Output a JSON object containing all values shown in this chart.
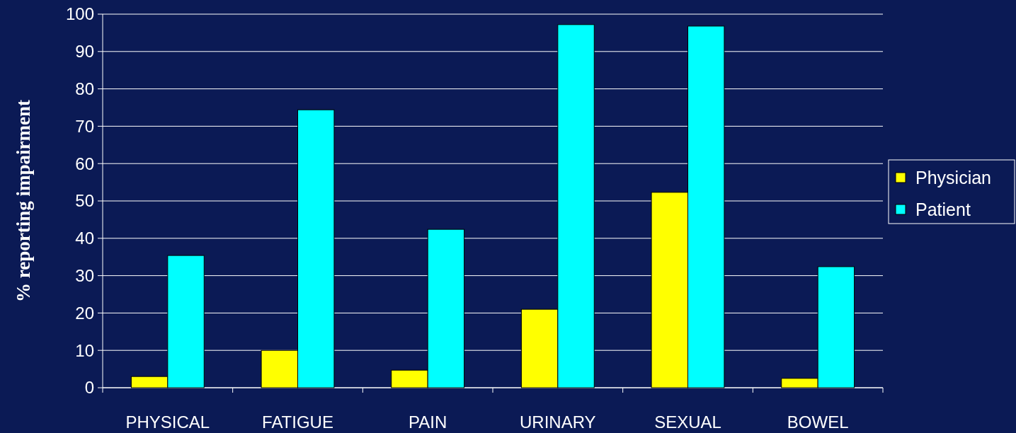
{
  "chart_data": {
    "type": "bar",
    "ylabel": "% reporting impairment",
    "categories": [
      "PHYSICAL",
      "FATIGUE",
      "PAIN",
      "URINARY",
      "SEXUAL",
      "BOWEL"
    ],
    "series": [
      {
        "name": "Physician",
        "color": "#ffff00",
        "values": [
          3,
          10,
          4.7,
          21,
          52.3,
          2.5
        ]
      },
      {
        "name": "Patient",
        "color": "#00ffff",
        "values": [
          35.4,
          74.4,
          42.4,
          97.2,
          96.8,
          32.4
        ]
      }
    ],
    "ylim": [
      0,
      100
    ],
    "yticks": [
      0,
      10,
      20,
      30,
      40,
      50,
      60,
      70,
      80,
      90,
      100
    ],
    "grid": "y",
    "legend": "right"
  }
}
